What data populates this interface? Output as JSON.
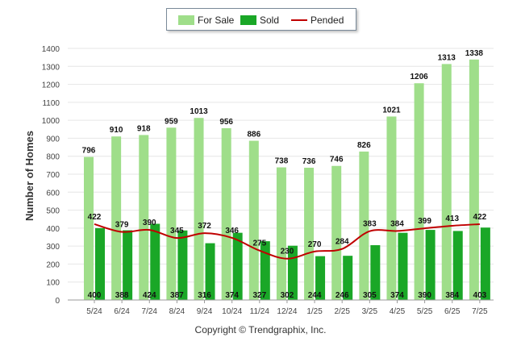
{
  "chart_data": {
    "type": "bar",
    "categories": [
      "5/24",
      "6/24",
      "7/24",
      "8/24",
      "9/24",
      "10/24",
      "11/24",
      "12/24",
      "1/25",
      "2/25",
      "3/25",
      "4/25",
      "5/25",
      "6/25",
      "7/25"
    ],
    "series": [
      {
        "name": "For Sale",
        "kind": "bar",
        "values": [
          796,
          910,
          918,
          959,
          1013,
          956,
          886,
          738,
          736,
          746,
          826,
          1021,
          1206,
          1313,
          1338
        ]
      },
      {
        "name": "Sold",
        "kind": "bar",
        "values": [
          400,
          388,
          424,
          387,
          316,
          374,
          327,
          302,
          244,
          246,
          305,
          374,
          390,
          384,
          403
        ]
      },
      {
        "name": "Pended",
        "kind": "line",
        "values": [
          422,
          379,
          390,
          345,
          372,
          346,
          275,
          230,
          270,
          284,
          383,
          384,
          399,
          413,
          422
        ]
      }
    ],
    "ylabel": "Number of Homes",
    "xlabel": "",
    "ylim": [
      0,
      1400
    ],
    "yticks": [
      0,
      100,
      200,
      300,
      400,
      500,
      600,
      700,
      800,
      900,
      1000,
      1100,
      1200,
      1300,
      1400
    ],
    "grid": true,
    "legend_position": "top-center",
    "colors": {
      "for_sale": "#9fde8a",
      "sold": "#1aa727",
      "pended": "#c00000",
      "grid": "#e6e6e6",
      "axis": "#999999"
    }
  },
  "footer": {
    "copyright": "Copyright © Trendgraphix, Inc."
  }
}
